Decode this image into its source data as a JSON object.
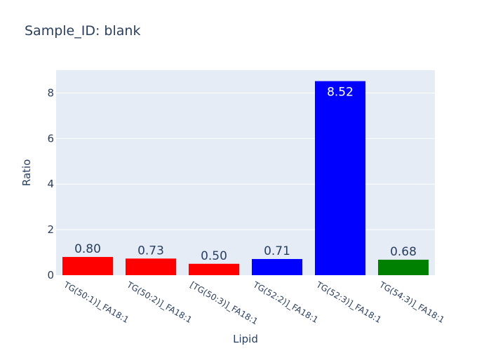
{
  "chart_data": {
    "type": "bar",
    "title": "Sample_ID: blank",
    "xlabel": "Lipid",
    "ylabel": "Ratio",
    "ylim": [
      0,
      9
    ],
    "yticks": [
      0,
      2,
      4,
      6,
      8
    ],
    "categories": [
      "TG(50:1)]_FA18:1",
      "TG(50:2)]_FA18:1",
      "[TG(50:3)]_FA18:1",
      "TG(52:2)]_FA18:1",
      "TG(52:3)]_FA18:1",
      "TG(54:3)]_FA18:1"
    ],
    "values": [
      0.8,
      0.73,
      0.5,
      0.71,
      8.52,
      0.68
    ],
    "labels": [
      "0.80",
      "0.73",
      "0.50",
      "0.71",
      "8.52",
      "0.68"
    ],
    "colors": [
      "#ff0000",
      "#ff0000",
      "#ff0000",
      "#0000ff",
      "#0000ff",
      "#008000"
    ],
    "grid": true,
    "legend": "none"
  },
  "style": {
    "plot_bg": "#e5ecf6",
    "grid_color": "#ffffff",
    "text_color": "#2a3f5f",
    "inside_label_color": "#ffffff"
  }
}
